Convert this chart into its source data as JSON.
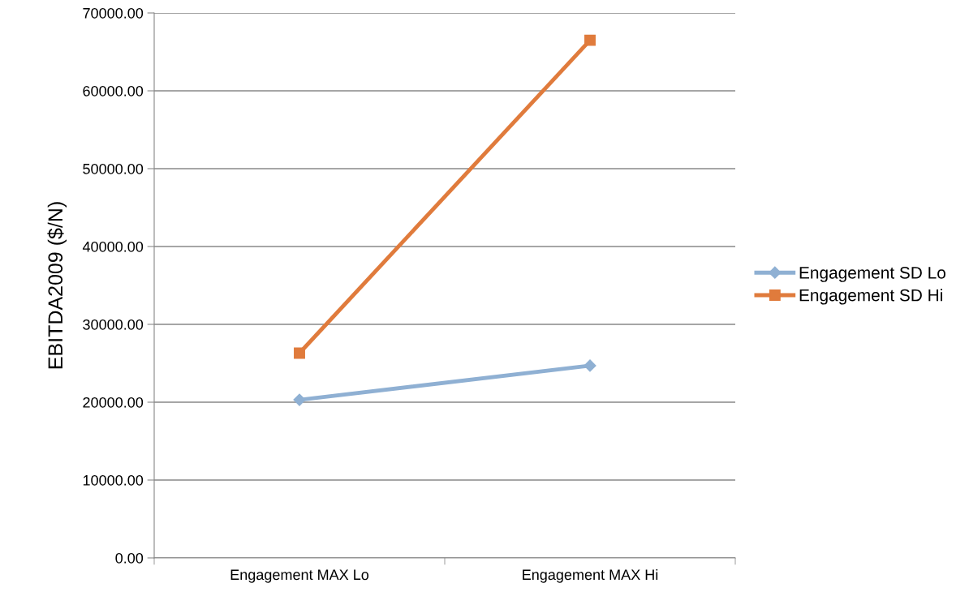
{
  "chart_data": {
    "type": "line",
    "ylabel": "EBITDA2009 ($/N)",
    "categories": [
      "Engagement MAX Lo",
      "Engagement MAX Hi"
    ],
    "series": [
      {
        "name": "Engagement SD Lo",
        "color": "#8fb0d3",
        "marker": "diamond",
        "values": [
          20300,
          24700
        ]
      },
      {
        "name": "Engagement SD Hi",
        "color": "#e07b3c",
        "marker": "square",
        "values": [
          26300,
          66500
        ]
      }
    ],
    "ylim": [
      0,
      70000
    ],
    "yticks": [
      {
        "value": 0,
        "label": "0.00"
      },
      {
        "value": 10000,
        "label": "10000.00"
      },
      {
        "value": 20000,
        "label": "20000.00"
      },
      {
        "value": 30000,
        "label": "30000.00"
      },
      {
        "value": 40000,
        "label": "40000.00"
      },
      {
        "value": 50000,
        "label": "50000.00"
      },
      {
        "value": 60000,
        "label": "60000.00"
      },
      {
        "value": 70000,
        "label": "70000.00"
      }
    ],
    "grid": "y",
    "legend": "right",
    "line_style": "solid"
  }
}
